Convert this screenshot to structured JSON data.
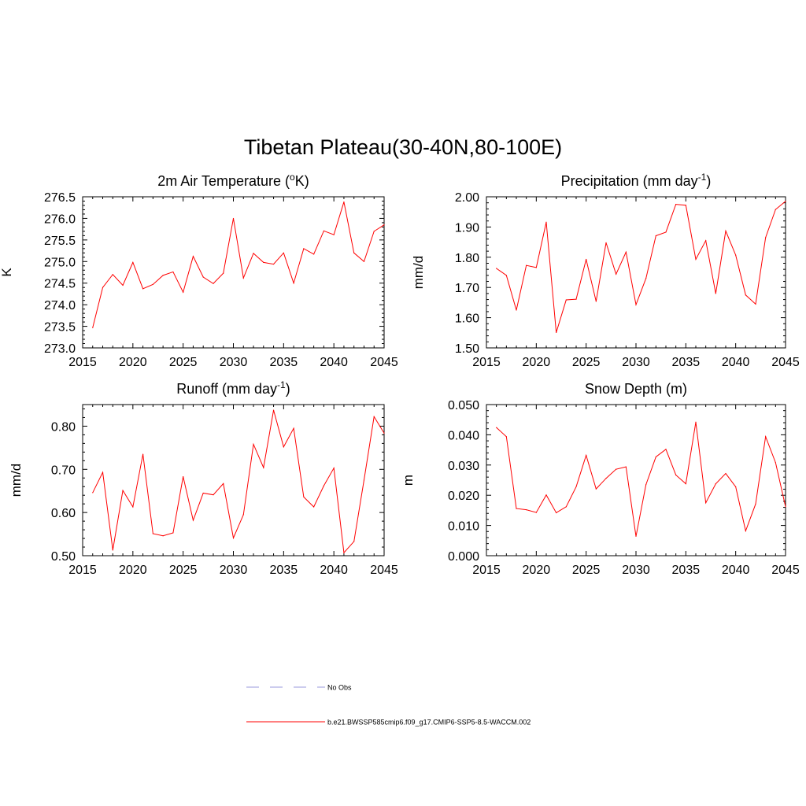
{
  "title": "Tibetan Plateau(30-40N,80-100E)",
  "colors": {
    "model": "#ff0000",
    "obs": "#9999dd",
    "axis": "#000000"
  },
  "legend": {
    "obs_label": "No Obs",
    "model_label": "b.e21.BWSSP585cmip6.f09_g17.CMIP6-SSP5-8.5-WACCM.002"
  },
  "chart_data": [
    {
      "type": "line",
      "title_main": "2m Air Temperature (",
      "title_sup": "o",
      "title_tail": "K)",
      "ylabel": "K",
      "xlim": [
        2015,
        2045
      ],
      "ylim": [
        273.0,
        276.5
      ],
      "xticks": [
        "2015",
        "2020",
        "2025",
        "2030",
        "2035",
        "2040",
        "2045"
      ],
      "yticks": [
        "273.0",
        "273.5",
        "274.0",
        "274.5",
        "275.0",
        "275.5",
        "276.0",
        "276.5"
      ],
      "x": [
        2016,
        2017,
        2018,
        2019,
        2020,
        2021,
        2022,
        2023,
        2024,
        2025,
        2026,
        2027,
        2028,
        2029,
        2030,
        2031,
        2032,
        2033,
        2034,
        2035,
        2036,
        2037,
        2038,
        2039,
        2040,
        2041,
        2042,
        2043,
        2044,
        2045
      ],
      "values": [
        273.47,
        274.4,
        274.7,
        274.45,
        274.98,
        274.37,
        274.47,
        274.68,
        274.76,
        274.29,
        275.12,
        274.64,
        274.49,
        274.73,
        276.0,
        274.62,
        275.19,
        274.98,
        274.94,
        275.2,
        274.5,
        275.3,
        275.17,
        275.71,
        275.62,
        276.38,
        275.2,
        275.0,
        275.7,
        275.85
      ],
      "series": [
        {
          "name": "b.e21.BWSSP585cmip6.f09_g17.CMIP6-SSP5-8.5-WACCM.002"
        }
      ]
    },
    {
      "type": "line",
      "title_main": "Precipitation (mm day",
      "title_sup": "-1",
      "title_tail": ")",
      "ylabel": "mm/d",
      "xlim": [
        2015,
        2045
      ],
      "ylim": [
        1.5,
        2.0
      ],
      "xticks": [
        "2015",
        "2020",
        "2025",
        "2030",
        "2035",
        "2040",
        "2045"
      ],
      "yticks": [
        "1.50",
        "1.60",
        "1.70",
        "1.80",
        "1.90",
        "2.00"
      ],
      "x": [
        2016,
        2017,
        2018,
        2019,
        2020,
        2021,
        2022,
        2023,
        2024,
        2025,
        2026,
        2027,
        2028,
        2029,
        2030,
        2031,
        2032,
        2033,
        2034,
        2035,
        2036,
        2037,
        2038,
        2039,
        2040,
        2041,
        2042,
        2043,
        2044,
        2045
      ],
      "values": [
        1.763,
        1.74,
        1.625,
        1.773,
        1.766,
        1.916,
        1.551,
        1.659,
        1.661,
        1.793,
        1.654,
        1.848,
        1.744,
        1.817,
        1.643,
        1.73,
        1.871,
        1.883,
        1.975,
        1.972,
        1.793,
        1.855,
        1.68,
        1.887,
        1.807,
        1.675,
        1.645,
        1.865,
        1.958,
        1.985
      ],
      "series": [
        {
          "name": "b.e21.BWSSP585cmip6.f09_g17.CMIP6-SSP5-8.5-WACCM.002"
        }
      ]
    },
    {
      "type": "line",
      "title_main": "Runoff (mm day",
      "title_sup": "-1",
      "title_tail": ")",
      "ylabel": "mm/d",
      "xlim": [
        2015,
        2045
      ],
      "ylim": [
        0.5,
        0.85
      ],
      "xticks": [
        "2015",
        "2020",
        "2025",
        "2030",
        "2035",
        "2040",
        "2045"
      ],
      "yticks": [
        "0.50",
        "0.60",
        "0.70",
        "0.80"
      ],
      "x": [
        2016,
        2017,
        2018,
        2019,
        2020,
        2021,
        2022,
        2023,
        2024,
        2025,
        2026,
        2027,
        2028,
        2029,
        2030,
        2031,
        2032,
        2033,
        2034,
        2035,
        2036,
        2037,
        2038,
        2039,
        2040,
        2041,
        2042,
        2043,
        2044,
        2045
      ],
      "values": [
        0.646,
        0.693,
        0.513,
        0.651,
        0.613,
        0.735,
        0.551,
        0.546,
        0.553,
        0.683,
        0.582,
        0.645,
        0.641,
        0.667,
        0.541,
        0.595,
        0.758,
        0.704,
        0.837,
        0.752,
        0.795,
        0.636,
        0.613,
        0.662,
        0.703,
        0.507,
        0.533,
        0.675,
        0.822,
        0.784
      ],
      "series": [
        {
          "name": "b.e21.BWSSP585cmip6.f09_g17.CMIP6-SSP5-8.5-WACCM.002"
        }
      ]
    },
    {
      "type": "line",
      "title_main": "Snow Depth (m)",
      "title_sup": "",
      "title_tail": "",
      "ylabel": "m",
      "xlim": [
        2015,
        2045
      ],
      "ylim": [
        0.0,
        0.05
      ],
      "xticks": [
        "2015",
        "2020",
        "2025",
        "2030",
        "2035",
        "2040",
        "2045"
      ],
      "yticks": [
        "0.000",
        "0.010",
        "0.020",
        "0.030",
        "0.040",
        "0.050"
      ],
      "x": [
        2016,
        2017,
        2018,
        2019,
        2020,
        2021,
        2022,
        2023,
        2024,
        2025,
        2026,
        2027,
        2028,
        2029,
        2030,
        2031,
        2032,
        2033,
        2034,
        2035,
        2036,
        2037,
        2038,
        2039,
        2040,
        2041,
        2042,
        2043,
        2044,
        2045
      ],
      "values": [
        0.0424,
        0.0394,
        0.0156,
        0.0152,
        0.0143,
        0.0201,
        0.0142,
        0.0162,
        0.0228,
        0.0332,
        0.0221,
        0.0256,
        0.0286,
        0.0294,
        0.0064,
        0.0235,
        0.0327,
        0.0352,
        0.0267,
        0.0238,
        0.0442,
        0.0175,
        0.0238,
        0.0272,
        0.0228,
        0.0082,
        0.0171,
        0.0394,
        0.0308,
        0.0162
      ],
      "series": [
        {
          "name": "b.e21.BWSSP585cmip6.f09_g17.CMIP6-SSP5-8.5-WACCM.002"
        }
      ]
    }
  ]
}
